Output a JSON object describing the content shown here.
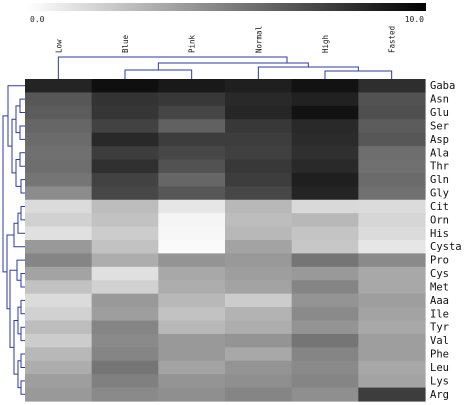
{
  "chart_data": {
    "type": "heatmap",
    "title": "",
    "xlabel": "",
    "ylabel": "",
    "color_scale": {
      "min": 0.0,
      "max": 10.0,
      "min_label": "0.0",
      "max_label": "10.0",
      "low_color": "#ffffff",
      "high_color": "#000000"
    },
    "columns": [
      "Low",
      "Blue",
      "Pink",
      "Normal",
      "High",
      "Fasted"
    ],
    "rows": [
      "Gaba",
      "Asn",
      "Glu",
      "Ser",
      "Asp",
      "Ala",
      "Thr",
      "Gln",
      "Gly",
      "Cit",
      "Orn",
      "His",
      "Cysta",
      "Pro",
      "Cys",
      "Met",
      "Aaa",
      "Ile",
      "Tyr",
      "Val",
      "Phe",
      "Leu",
      "Lys",
      "Arg"
    ],
    "values": [
      [
        8.6,
        9.4,
        9.0,
        8.8,
        9.3,
        8.2
      ],
      [
        6.6,
        8.0,
        7.8,
        8.4,
        8.7,
        6.8
      ],
      [
        6.4,
        7.9,
        7.3,
        8.5,
        9.3,
        6.9
      ],
      [
        6.0,
        7.4,
        6.2,
        7.8,
        8.4,
        6.4
      ],
      [
        5.8,
        8.4,
        7.6,
        7.6,
        8.3,
        6.6
      ],
      [
        5.6,
        7.6,
        7.2,
        7.5,
        8.1,
        5.7
      ],
      [
        5.7,
        8.1,
        6.8,
        7.8,
        8.4,
        5.6
      ],
      [
        5.4,
        7.4,
        6.0,
        7.6,
        8.8,
        5.8
      ],
      [
        4.5,
        7.2,
        6.6,
        7.2,
        8.6,
        5.6
      ],
      [
        1.4,
        2.6,
        1.0,
        2.8,
        1.5,
        1.4
      ],
      [
        1.8,
        2.4,
        0.4,
        2.6,
        2.8,
        1.6
      ],
      [
        1.2,
        2.0,
        0.3,
        2.8,
        2.3,
        1.4
      ],
      [
        4.0,
        2.4,
        0.2,
        3.6,
        2.2,
        1.0
      ],
      [
        4.8,
        3.2,
        4.2,
        4.0,
        5.4,
        4.6
      ],
      [
        3.6,
        1.2,
        3.4,
        3.8,
        4.0,
        3.4
      ],
      [
        2.4,
        1.8,
        3.2,
        3.6,
        4.8,
        3.4
      ],
      [
        1.4,
        4.0,
        2.8,
        2.0,
        4.2,
        3.8
      ],
      [
        1.8,
        3.8,
        2.4,
        3.0,
        4.6,
        3.6
      ],
      [
        2.6,
        4.8,
        2.8,
        3.2,
        4.2,
        3.4
      ],
      [
        2.0,
        4.6,
        4.0,
        4.2,
        5.4,
        3.8
      ],
      [
        2.8,
        4.8,
        4.0,
        3.4,
        4.8,
        3.8
      ],
      [
        3.2,
        5.4,
        3.6,
        4.2,
        4.6,
        3.4
      ],
      [
        3.8,
        5.0,
        4.2,
        4.4,
        4.8,
        3.6
      ],
      [
        4.0,
        4.6,
        4.4,
        4.8,
        4.4,
        7.6
      ]
    ],
    "dendrogram_color": "#2b3aa8",
    "grid": false,
    "legend": "top"
  }
}
